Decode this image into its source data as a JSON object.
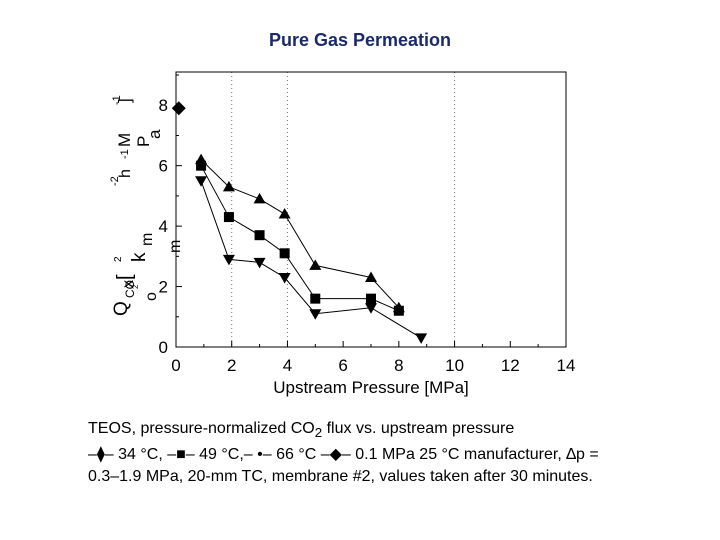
{
  "chart_data": {
    "type": "scatter",
    "title": "Pure Gas Permeation",
    "xlabel": "Upstream Pressure [MPa]",
    "ylabel_fragments": [
      "Q",
      "CO",
      "2",
      "x",
      "[",
      "k",
      "m",
      "o",
      "m",
      "2",
      "h",
      "-1",
      "M",
      "P",
      "a",
      "-1",
      "]",
      "-2"
    ],
    "xlim": [
      0,
      14
    ],
    "ylim": [
      0,
      9.1
    ],
    "xticks": [
      0,
      2,
      4,
      6,
      8,
      10,
      12,
      14
    ],
    "yticks": [
      0,
      2,
      4,
      6,
      8
    ],
    "x_gridlines": [
      2,
      4,
      10
    ],
    "series": [
      {
        "marker": "triangle-up",
        "x": [
          0.9,
          1.9,
          3.0,
          3.9,
          5.0,
          7.0,
          8.0
        ],
        "y": [
          6.2,
          5.3,
          4.9,
          4.4,
          2.7,
          2.3,
          1.3
        ]
      },
      {
        "marker": "square",
        "x": [
          0.9,
          1.9,
          3.0,
          3.9,
          5.0,
          7.0,
          8.0
        ],
        "y": [
          6.0,
          4.3,
          3.7,
          3.1,
          1.6,
          1.6,
          1.2
        ]
      },
      {
        "marker": "triangle-down",
        "x": [
          0.9,
          1.9,
          3.0,
          3.9,
          5.0,
          7.0,
          8.8
        ],
        "y": [
          5.5,
          2.9,
          2.8,
          2.3,
          1.1,
          1.3,
          0.3
        ]
      },
      {
        "marker": "diamond",
        "x": [
          0.1
        ],
        "y": [
          7.9
        ]
      }
    ]
  },
  "caption": {
    "line1_pre": "TEOS, pressure-normalized CO",
    "line1_sub": "2",
    "line1_post": " flux vs. upstream pressure",
    "legend_line": "–⧫– 34 °C, –■– 49 °C,– •– 66 °C –◆– 0.1 MPa 25 °C manufacturer, ∆p =",
    "line3": "0.3–1.9 MPa, 20-mm TC, membrane #2, values taken after 30 minutes."
  }
}
